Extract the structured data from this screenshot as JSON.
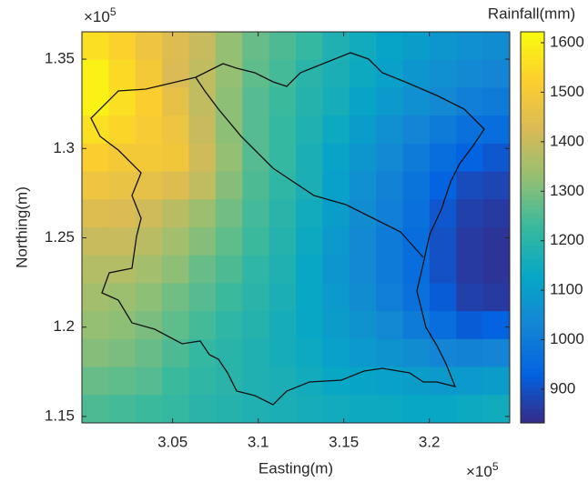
{
  "chart_data": {
    "type": "heatmap",
    "xlabel": "Easting(m)",
    "ylabel": "Northing(m)",
    "colorbar_label": "Rainfall(mm)",
    "x_multiplier": {
      "base": "×10",
      "exponent": "5"
    },
    "y_multiplier": {
      "base": "×10",
      "exponent": "5"
    },
    "xlim": [
      299700,
      324700
    ],
    "ylim": [
      114640,
      136530
    ],
    "xticks": [
      {
        "value": 305000,
        "label": "3.05"
      },
      {
        "value": 310000,
        "label": "3.1"
      },
      {
        "value": 315000,
        "label": "3.15"
      },
      {
        "value": 320000,
        "label": "3.2"
      }
    ],
    "yticks": [
      {
        "value": 115000,
        "label": "1.15"
      },
      {
        "value": 120000,
        "label": "1.2"
      },
      {
        "value": 125000,
        "label": "1.25"
      },
      {
        "value": 130000,
        "label": "1.3"
      },
      {
        "value": 135000,
        "label": "1.35"
      }
    ],
    "clim": [
      832,
      1622
    ],
    "cticks": [
      900,
      1000,
      1100,
      1200,
      1300,
      1400,
      1500,
      1600
    ],
    "colormap": [
      "#352a87",
      "#0363e1",
      "#1485d4",
      "#06a7c6",
      "#38b99e",
      "#92bf73",
      "#d9ba56",
      "#fcce2e",
      "#f9fb0e"
    ],
    "values": [
      [
        1560,
        1530,
        1480,
        1440,
        1400,
        1330,
        1280,
        1250,
        1220,
        1180,
        1150,
        1120,
        1100,
        1080,
        1060,
        1050
      ],
      [
        1600,
        1550,
        1500,
        1430,
        1390,
        1330,
        1270,
        1240,
        1200,
        1170,
        1140,
        1110,
        1080,
        1060,
        1040,
        1030
      ],
      [
        1600,
        1560,
        1520,
        1460,
        1390,
        1320,
        1260,
        1230,
        1190,
        1160,
        1120,
        1090,
        1060,
        1040,
        1010,
        1000
      ],
      [
        1560,
        1540,
        1510,
        1480,
        1400,
        1320,
        1260,
        1220,
        1180,
        1140,
        1100,
        1060,
        1030,
        1000,
        970,
        960
      ],
      [
        1520,
        1500,
        1500,
        1490,
        1410,
        1330,
        1260,
        1220,
        1170,
        1120,
        1080,
        1040,
        1000,
        960,
        930,
        910
      ],
      [
        1480,
        1470,
        1460,
        1440,
        1390,
        1310,
        1250,
        1210,
        1170,
        1110,
        1060,
        1020,
        980,
        930,
        890,
        880
      ],
      [
        1440,
        1430,
        1410,
        1380,
        1340,
        1290,
        1240,
        1200,
        1150,
        1100,
        1050,
        1010,
        970,
        910,
        870,
        860
      ],
      [
        1400,
        1400,
        1380,
        1350,
        1310,
        1270,
        1230,
        1190,
        1140,
        1090,
        1040,
        1000,
        960,
        900,
        860,
        850
      ],
      [
        1370,
        1370,
        1350,
        1320,
        1280,
        1250,
        1210,
        1180,
        1130,
        1080,
        1040,
        1000,
        960,
        900,
        860,
        850
      ],
      [
        1350,
        1340,
        1320,
        1290,
        1260,
        1230,
        1200,
        1170,
        1130,
        1090,
        1050,
        1010,
        970,
        920,
        870,
        860
      ],
      [
        1330,
        1320,
        1300,
        1270,
        1240,
        1210,
        1190,
        1160,
        1130,
        1100,
        1070,
        1040,
        1000,
        960,
        920,
        930
      ],
      [
        1310,
        1300,
        1280,
        1250,
        1220,
        1200,
        1180,
        1160,
        1140,
        1110,
        1090,
        1070,
        1050,
        1030,
        1020,
        1030
      ],
      [
        1280,
        1270,
        1260,
        1230,
        1210,
        1200,
        1180,
        1170,
        1150,
        1130,
        1120,
        1110,
        1100,
        1090,
        1090,
        1100
      ],
      [
        1250,
        1240,
        1230,
        1220,
        1200,
        1190,
        1180,
        1170,
        1160,
        1150,
        1140,
        1140,
        1130,
        1130,
        1140,
        1150
      ]
    ]
  }
}
